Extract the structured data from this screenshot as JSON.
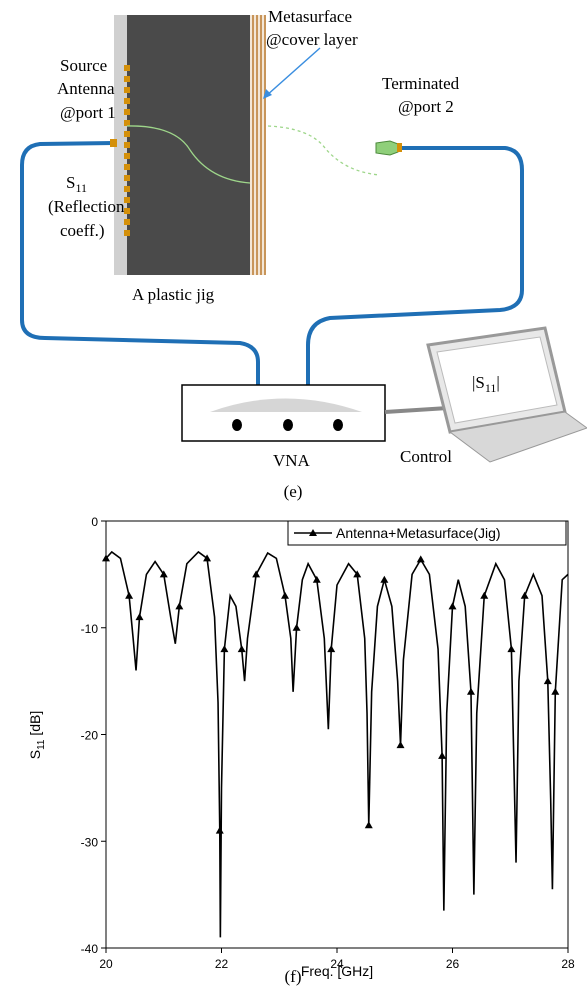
{
  "diagram": {
    "caption": "(e)",
    "source": [
      "Source",
      "Antenna",
      "@port 1"
    ],
    "s11": {
      "main": "S",
      "sub": "11"
    },
    "reflection": [
      "(Reflection",
      "coeff.)"
    ],
    "jig": "A plastic jig",
    "metasurface": [
      "Metasurface",
      "@cover layer"
    ],
    "terminated": [
      "Terminated",
      "@port 2"
    ],
    "vna": "VNA",
    "control": "Control",
    "screen": {
      "left": "|S",
      "sub": "11",
      "right": "|"
    }
  },
  "chart_data": {
    "type": "line",
    "caption": "(f)",
    "xlabel": "Freq. [GHz]",
    "ylabel": {
      "main": "S",
      "sub": "11",
      "unit": " [dB]"
    },
    "x": [
      20.0,
      20.1,
      20.25,
      20.4,
      20.47,
      20.52,
      20.58,
      20.7,
      20.85,
      21.0,
      21.12,
      21.2,
      21.27,
      21.4,
      21.6,
      21.75,
      21.88,
      21.94,
      21.97,
      21.98,
      22.0,
      22.05,
      22.15,
      22.25,
      22.35,
      22.4,
      22.45,
      22.6,
      22.8,
      22.95,
      23.1,
      23.2,
      23.24,
      23.3,
      23.4,
      23.5,
      23.65,
      23.78,
      23.85,
      23.9,
      24.0,
      24.2,
      24.35,
      24.48,
      24.52,
      24.55,
      24.6,
      24.7,
      24.82,
      24.95,
      25.05,
      25.1,
      25.15,
      25.3,
      25.45,
      25.6,
      25.75,
      25.82,
      25.85,
      25.9,
      26.0,
      26.1,
      26.22,
      26.32,
      26.37,
      26.42,
      26.55,
      26.75,
      26.9,
      27.02,
      27.1,
      27.15,
      27.25,
      27.4,
      27.55,
      27.65,
      27.7,
      27.73,
      27.78,
      27.9,
      28.0
    ],
    "series": [
      {
        "name": "Antenna+Metasurface(Jig)",
        "color": "#000000",
        "values": [
          -3.5,
          -2.9,
          -3.5,
          -7,
          -11,
          -14,
          -9,
          -5,
          -3.8,
          -5,
          -9,
          -11.5,
          -8,
          -4,
          -2.9,
          -3.5,
          -9,
          -17,
          -29,
          -39,
          -25,
          -12,
          -7,
          -8,
          -12,
          -15,
          -11,
          -5,
          -3,
          -3.5,
          -7,
          -11,
          -16,
          -10,
          -5.5,
          -4,
          -5.5,
          -11,
          -19.5,
          -12,
          -6,
          -4,
          -5,
          -11,
          -18,
          -28.5,
          -16,
          -8,
          -5.5,
          -8,
          -15,
          -21,
          -13,
          -5,
          -3.6,
          -5,
          -12,
          -22,
          -36.5,
          -18,
          -8,
          -5.5,
          -8,
          -16,
          -35,
          -18,
          -7,
          -4,
          -5.5,
          -12,
          -32,
          -15,
          -7,
          -5,
          -7,
          -15,
          -26,
          -34.5,
          -16,
          -5.5,
          -5
        ]
      }
    ],
    "xlim": [
      20,
      28
    ],
    "xticks": [
      20,
      22,
      24,
      26,
      28
    ],
    "ylim": [
      -40,
      0
    ],
    "yticks": [
      -40,
      -30,
      -20,
      -10,
      0
    ],
    "legend": "upper right"
  }
}
